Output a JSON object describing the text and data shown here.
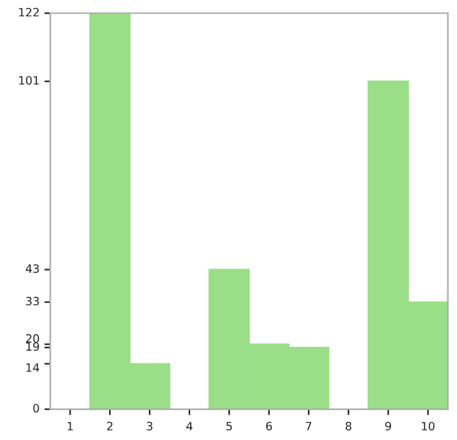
{
  "chart_data": {
    "type": "bar",
    "categories": [
      "1",
      "2",
      "3",
      "4",
      "5",
      "6",
      "7",
      "8",
      "9",
      "10"
    ],
    "values": [
      0,
      122,
      14,
      0,
      43,
      20,
      19,
      0,
      101,
      33
    ],
    "color": "#9ade88",
    "ylim": [
      0,
      122
    ],
    "yticks": [
      0,
      14,
      19,
      20,
      33,
      43,
      101,
      122
    ],
    "grid": false
  }
}
